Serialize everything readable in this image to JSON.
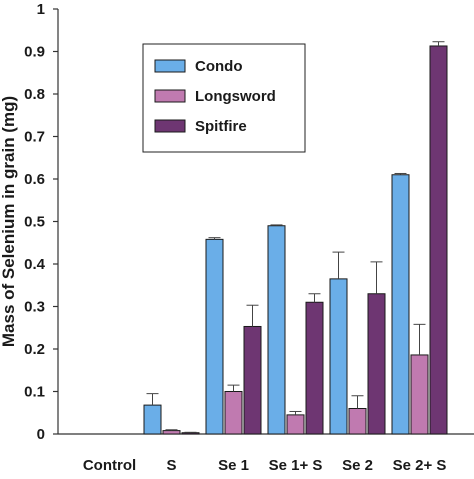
{
  "chart_data": {
    "type": "bar",
    "title": "",
    "xlabel": "",
    "ylabel": "Mass of Selenium in grain (mg)",
    "ylim": [
      0,
      1
    ],
    "yticks": [
      "0",
      "0.1",
      "0.2",
      "0.3",
      "0.4",
      "0.5",
      "0.6",
      "0.7",
      "0.8",
      "0.9",
      "1"
    ],
    "categories": [
      "Control",
      "S",
      "Se 1",
      "Se 1+ S",
      "Se 2",
      "Se 2+ S"
    ],
    "series": [
      {
        "name": "Condo",
        "color": "#6aaee8",
        "values": [
          0,
          0.068,
          0.458,
          0.49,
          0.365,
          0.61
        ],
        "errors": [
          0,
          0.027,
          0.004,
          0.002,
          0.063,
          0.003
        ]
      },
      {
        "name": "Longsword",
        "color": "#c07ab0",
        "values": [
          0,
          0.008,
          0.1,
          0.045,
          0.06,
          0.186
        ],
        "errors": [
          0,
          0.002,
          0.015,
          0.008,
          0.03,
          0.072
        ]
      },
      {
        "name": "Spitfire",
        "color": "#6e3672",
        "values": [
          0,
          0.003,
          0.253,
          0.31,
          0.33,
          0.913
        ],
        "errors": [
          0,
          0.001,
          0.05,
          0.02,
          0.075,
          0.01
        ]
      }
    ],
    "legend_position": "upper-left",
    "grid": false
  }
}
